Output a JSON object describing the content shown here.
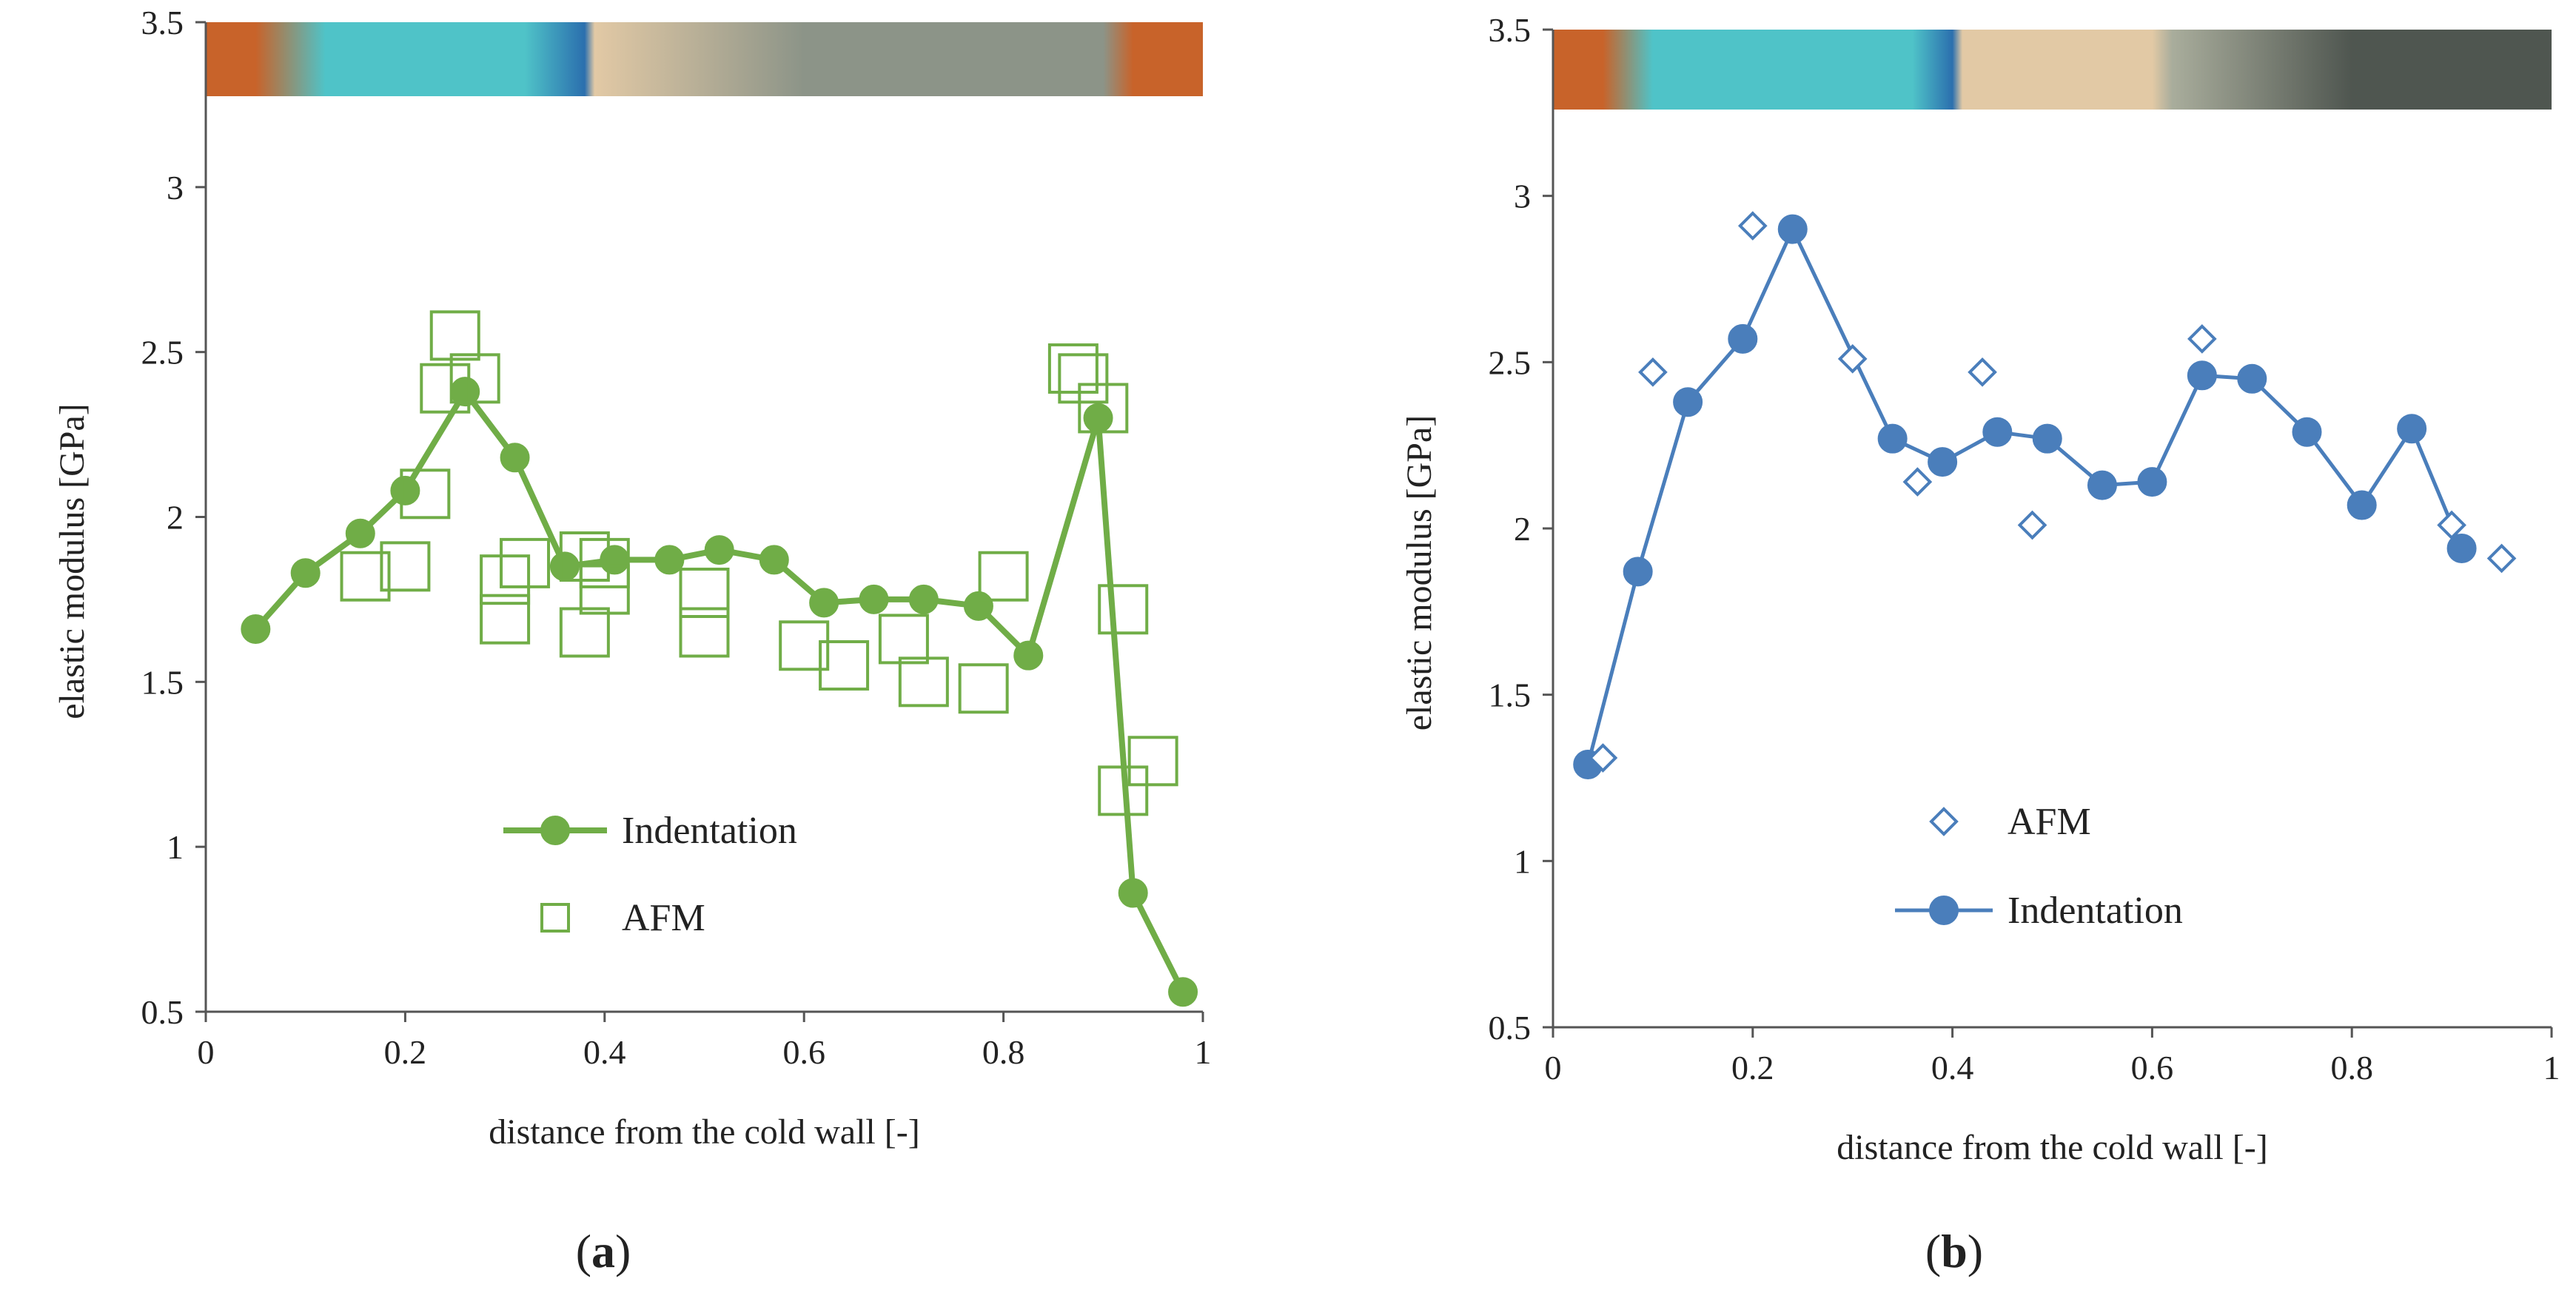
{
  "chart_data": [
    {
      "panel_label": "(a)",
      "panel_letter": "a",
      "type": "line+scatter",
      "xlabel": "distance from the cold wall [-]",
      "ylabel": "elastic modulus [GPa]",
      "xlim": [
        0,
        1
      ],
      "ylim": [
        0.5,
        3.5
      ],
      "x_ticks": [
        0,
        0.2,
        0.4,
        0.6,
        0.8,
        1
      ],
      "x_tick_labels": [
        "0",
        "0.2",
        "0.4",
        "0.6",
        "0.8",
        "1"
      ],
      "y_ticks": [
        0.5,
        1,
        1.5,
        2,
        2.5,
        3,
        3.5
      ],
      "y_tick_labels": [
        "0.5",
        "1",
        "1.5",
        "2",
        "2.5",
        "3",
        "3.5"
      ],
      "color": "#70ad47",
      "band_colors": [
        "#c8632a",
        "#4fc3c8",
        "#2b6fae",
        "#e2c9a5",
        "#8c9488",
        "#c8632a"
      ],
      "legend": {
        "position": "center-bottom",
        "entries": [
          "Indentation",
          "AFM"
        ]
      },
      "series": [
        {
          "name": "Indentation",
          "style": "line-circle",
          "x": [
            0.05,
            0.1,
            0.155,
            0.2,
            0.26,
            0.31,
            0.36,
            0.41,
            0.465,
            0.515,
            0.57,
            0.62,
            0.67,
            0.72,
            0.775,
            0.825,
            0.895,
            0.93,
            0.98
          ],
          "y": [
            1.66,
            1.83,
            1.95,
            2.08,
            2.38,
            2.18,
            1.85,
            1.87,
            1.87,
            1.9,
            1.87,
            1.74,
            1.75,
            1.75,
            1.73,
            1.58,
            2.3,
            0.86,
            0.56
          ]
        },
        {
          "name": "AFM",
          "style": "open-square",
          "x": [
            0.16,
            0.2,
            0.22,
            0.24,
            0.25,
            0.27,
            0.3,
            0.3,
            0.32,
            0.38,
            0.38,
            0.4,
            0.4,
            0.5,
            0.5,
            0.6,
            0.64,
            0.7,
            0.72,
            0.78,
            0.8,
            0.87,
            0.88,
            0.9,
            0.92,
            0.92,
            0.95
          ],
          "y": [
            1.82,
            1.85,
            2.07,
            2.39,
            2.55,
            2.42,
            1.81,
            1.69,
            1.86,
            1.88,
            1.65,
            1.86,
            1.78,
            1.77,
            1.65,
            1.61,
            1.55,
            1.63,
            1.5,
            1.48,
            1.82,
            2.45,
            2.42,
            2.33,
            1.72,
            1.17,
            1.26
          ]
        }
      ]
    },
    {
      "panel_label": "(b)",
      "panel_letter": "b",
      "type": "line+scatter",
      "xlabel": "distance from the cold wall [-]",
      "ylabel": "elastic modulus [GPa]",
      "xlim": [
        0,
        1
      ],
      "ylim": [
        0.5,
        3.5
      ],
      "x_ticks": [
        0,
        0.2,
        0.4,
        0.6,
        0.8,
        1
      ],
      "x_tick_labels": [
        "0",
        "0.2",
        "0.4",
        "0.6",
        "0.8",
        "1"
      ],
      "y_ticks": [
        0.5,
        1,
        1.5,
        2,
        2.5,
        3,
        3.5
      ],
      "y_tick_labels": [
        "0.5",
        "1",
        "1.5",
        "2",
        "2.5",
        "3",
        "3.5"
      ],
      "color": "#4a7ebb",
      "band_colors": [
        "#c8632a",
        "#4fc3c8",
        "#2b6fae",
        "#e2c9a5",
        "#a9ad9c",
        "#4f5650"
      ],
      "legend": {
        "position": "center-bottom",
        "entries": [
          "AFM",
          "Indentation"
        ]
      },
      "series": [
        {
          "name": "Indentation",
          "style": "line-circle",
          "x": [
            0.035,
            0.085,
            0.135,
            0.19,
            0.24,
            0.34,
            0.39,
            0.445,
            0.495,
            0.55,
            0.6,
            0.65,
            0.7,
            0.755,
            0.81,
            0.86,
            0.91
          ],
          "y": [
            1.29,
            1.87,
            2.38,
            2.57,
            2.9,
            2.27,
            2.2,
            2.29,
            2.27,
            2.13,
            2.14,
            2.46,
            2.45,
            2.29,
            2.07,
            2.3,
            1.94
          ]
        },
        {
          "name": "AFM",
          "style": "open-diamond",
          "x": [
            0.05,
            0.1,
            0.2,
            0.3,
            0.365,
            0.43,
            0.48,
            0.65,
            0.9,
            0.95
          ],
          "y": [
            1.31,
            2.47,
            2.91,
            2.51,
            2.14,
            2.47,
            2.01,
            2.57,
            2.01,
            1.91
          ]
        }
      ]
    }
  ]
}
